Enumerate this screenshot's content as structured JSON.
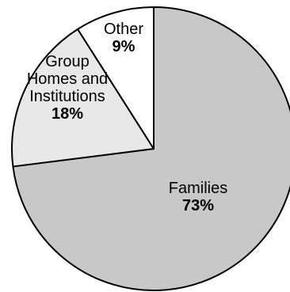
{
  "chart_data": {
    "type": "pie",
    "title": "",
    "start_angle_deg": 0,
    "direction": "clockwise",
    "slices": [
      {
        "label": [
          "Families"
        ],
        "value": 73,
        "value_label": "73%",
        "color": "#c8c8c8"
      },
      {
        "label": [
          "Group",
          "Homes and",
          "Institutions"
        ],
        "value": 18,
        "value_label": "18%",
        "color": "#e8e8e8"
      },
      {
        "label": [
          "Other"
        ],
        "value": 9,
        "value_label": "9%",
        "color": "#ffffff"
      }
    ]
  }
}
